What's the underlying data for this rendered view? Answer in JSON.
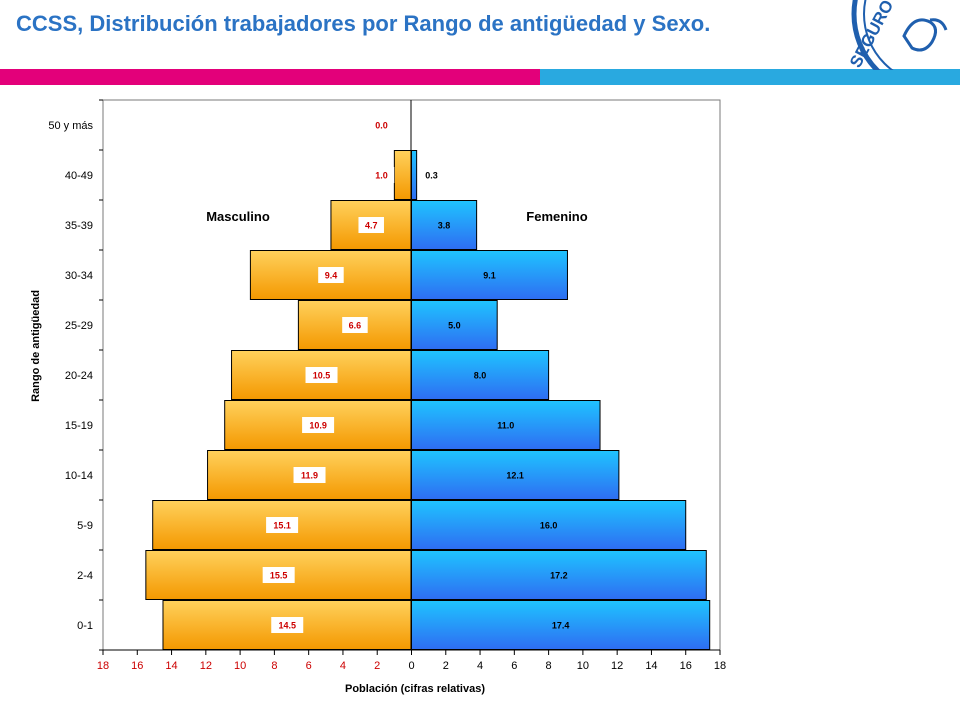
{
  "header": {
    "title": "CCSS, Distribución trabajadores por Rango de antigüedad  y Sexo.",
    "accent_colors": {
      "title": "#2b73c4",
      "band_left": "#e3007a",
      "band_right": "#29a9e0"
    },
    "logo_icon": "ccss-seal-logo",
    "logo_text": "SEGURO SOCIAL"
  },
  "chart_data": {
    "type": "bar",
    "orientation": "horizontal-population-pyramid",
    "categories": [
      "0-1",
      "2-4",
      "5-9",
      "10-14",
      "15-19",
      "20-24",
      "25-29",
      "30-34",
      "35-39",
      "40-49",
      "50 y más"
    ],
    "series": [
      {
        "name": "Masculino",
        "values": [
          14.5,
          15.5,
          15.1,
          11.9,
          10.9,
          10.5,
          6.6,
          9.4,
          4.7,
          1.0,
          0.0
        ],
        "color": "#f7a600",
        "label_color": "#cc0000"
      },
      {
        "name": "Femenino",
        "values": [
          17.4,
          17.2,
          16.0,
          12.1,
          11.0,
          8.0,
          5.0,
          9.1,
          3.8,
          0.3,
          0.0
        ],
        "color": "#2f8ff0",
        "label_color": "#000000"
      }
    ],
    "data_labels": {
      "Masculino": [
        "14.5",
        "15.5",
        "15.1",
        "11.9",
        "10.9",
        "10.5",
        "6.6",
        "9.4",
        "4.7",
        "1.0",
        "0.0"
      ],
      "Femenino": [
        "17.4",
        "17.2",
        "16.0",
        "12.1",
        "11.0",
        "8.0",
        "5.0",
        "9.1",
        "3.8",
        "0.3",
        ""
      ]
    },
    "xlabel": "Población (cifras relativas)",
    "ylabel": "Rango de antigüedad",
    "xlim": [
      -18,
      18
    ],
    "xticks": [
      -18,
      -16,
      -14,
      -12,
      -10,
      -8,
      -6,
      -4,
      -2,
      0,
      2,
      4,
      6,
      8,
      10,
      12,
      14,
      16,
      18
    ],
    "xtick_labels": [
      "18",
      "16",
      "14",
      "12",
      "10",
      "8",
      "6",
      "4",
      "2",
      "0",
      "2",
      "4",
      "6",
      "8",
      "10",
      "12",
      "14",
      "16",
      "18"
    ],
    "grid": false,
    "legend": "series names printed inside plot (Masculino left, Femenino right)"
  }
}
